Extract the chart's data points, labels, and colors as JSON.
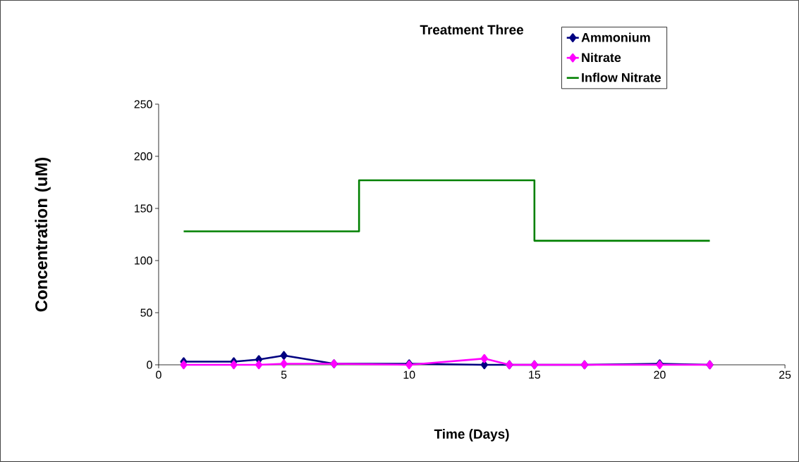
{
  "chart_data": {
    "type": "line",
    "title": "Treatment Three",
    "xlabel": "Time (Days)",
    "ylabel": "Concentration (uM)",
    "xlim": [
      0,
      25
    ],
    "xticks": [
      0,
      5,
      10,
      15,
      20,
      25
    ],
    "ylim": [
      0,
      250
    ],
    "yticks": [
      0,
      50,
      100,
      150,
      200,
      250
    ],
    "legend": "top right",
    "grid": false,
    "marker": "diamond",
    "series": [
      {
        "name": "Ammonium",
        "color": "#000080",
        "x": [
          1,
          3,
          4,
          5,
          7,
          10,
          13,
          14,
          15,
          17,
          20,
          22
        ],
        "values": [
          3,
          3,
          5,
          9,
          1,
          1,
          0,
          0,
          0,
          0,
          1,
          0
        ]
      },
      {
        "name": "Nitrate",
        "color": "#ff00ff",
        "x": [
          1,
          3,
          4,
          5,
          7,
          10,
          13,
          14,
          15,
          17,
          20,
          22
        ],
        "values": [
          0,
          0,
          0,
          1,
          1,
          0,
          6,
          0,
          0,
          0,
          0,
          0
        ]
      },
      {
        "name": "Inflow Nitrate",
        "type": "step",
        "marker": "none",
        "color": "#008000",
        "x": [
          1,
          8,
          15,
          22
        ],
        "values": [
          128,
          177,
          119,
          119
        ]
      }
    ]
  }
}
